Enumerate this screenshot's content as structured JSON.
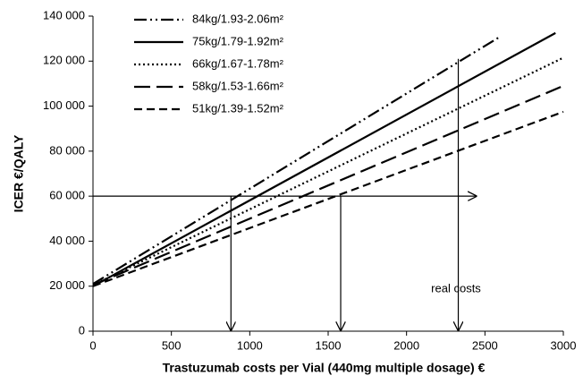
{
  "chart_data": {
    "type": "line",
    "xlabel": "Trastuzumab costs per Vial (440mg multiple dosage)  €",
    "ylabel": "ICER €/QALY",
    "xlim": [
      0,
      3000
    ],
    "ylim": [
      0,
      140000
    ],
    "xticks": [
      0,
      500,
      1000,
      1500,
      2000,
      2500,
      3000
    ],
    "yticks": [
      0,
      {
        "value": 20000,
        "label": "20 000"
      },
      {
        "value": 40000,
        "label": "40 000"
      },
      {
        "value": 60000,
        "label": "60 000"
      },
      {
        "value": 80000,
        "label": "80 000"
      },
      {
        "value": 100000,
        "label": "100 000"
      },
      {
        "value": 120000,
        "label": "120 000"
      },
      {
        "value": 140000,
        "label": "140 000"
      }
    ],
    "grid": false,
    "legend": "upper-left",
    "series": [
      {
        "name": "84kg/1.93-2.06m²",
        "color": "#000000",
        "style": "dashdotdot",
        "x": [
          0,
          2600
        ],
        "values": [
          21000,
          131000
        ]
      },
      {
        "name": "75kg/1.79-1.92m²",
        "color": "#000000",
        "style": "solid",
        "x": [
          0,
          2950
        ],
        "values": [
          20000,
          132500
        ]
      },
      {
        "name": "66kg/1.67-1.78m²",
        "color": "#000000",
        "style": "dotted",
        "x": [
          0,
          3000
        ],
        "values": [
          20500,
          121500
        ]
      },
      {
        "name": "58kg/1.53-1.66m²",
        "color": "#000000",
        "style": "longdash",
        "x": [
          0,
          3000
        ],
        "values": [
          20500,
          109000
        ]
      },
      {
        "name": "51kg/1.39-1.52m²",
        "color": "#000000",
        "style": "dashed",
        "x": [
          0,
          3000
        ],
        "values": [
          20000,
          97500
        ]
      }
    ],
    "arrows": [
      {
        "x": [
          0,
          2450
        ],
        "values": [
          60000,
          60000
        ]
      },
      {
        "x": [
          880,
          880
        ],
        "values": [
          60000,
          0
        ]
      },
      {
        "x": [
          1580,
          1580
        ],
        "values": [
          60000,
          0
        ]
      },
      {
        "x": [
          2330,
          2330
        ],
        "values": [
          121000,
          0
        ]
      }
    ],
    "annotation": "real costs"
  }
}
